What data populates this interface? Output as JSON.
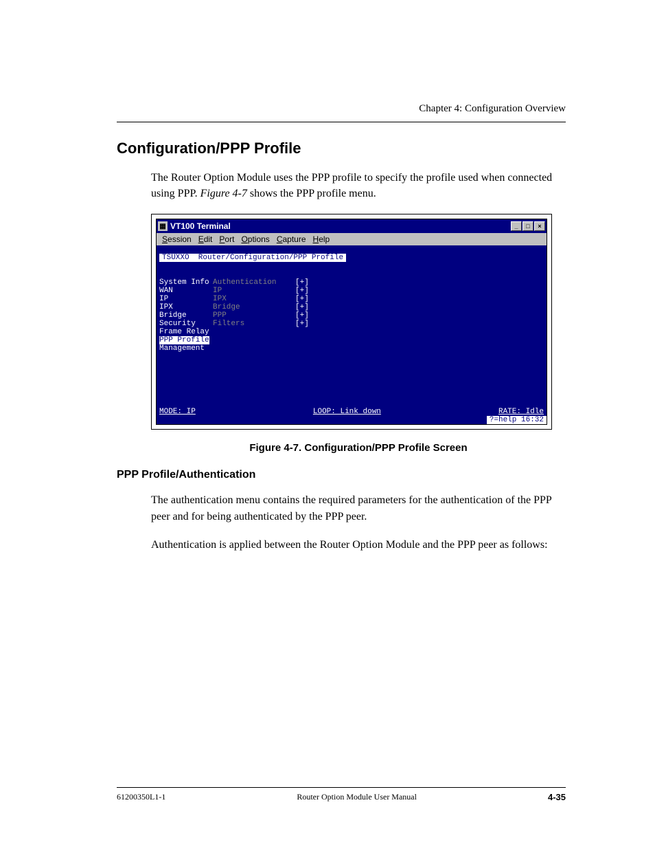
{
  "page": {
    "chapter_header": "Chapter 4:  Configuration Overview",
    "section_title": "Configuration/PPP Profile",
    "intro_1a": "The Router Option Module uses the PPP profile to specify the pro­file used when connected using PPP. ",
    "intro_1b": "Figure 4-7",
    "intro_1c": " shows the PPP pro­file menu.",
    "figure_caption": "Figure 4-7.  Configuration/PPP Profile Screen",
    "subsection_title": "PPP Profile/Authentication",
    "auth_p1": "The authentication menu contains the required parameters for the authentication of the PPP peer and for being authenticated by the PPP peer.",
    "auth_p2": "Authentication is applied between the Router Option Module and the PPP peer as follows:"
  },
  "terminal": {
    "titlebar_text": "VT100 Terminal",
    "menubar": [
      "Session",
      "Edit",
      "Port",
      "Options",
      "Capture",
      "Help"
    ],
    "header": "TSUXXO  Router/Configuration/PPP Profile",
    "left_panel": [
      "System Info",
      "WAN",
      "IP",
      "IPX",
      "Bridge",
      "Security",
      "Frame Relay",
      "PPP Profile",
      "Management"
    ],
    "left_selected_index": 7,
    "mid_panel": [
      "Authentication",
      "IP",
      "IPX",
      "Bridge",
      "PPP",
      "Filters"
    ],
    "right_marks": [
      "[+]",
      "[+]",
      "[+]",
      "[+]",
      "[+]",
      "[+]"
    ],
    "status_mode": "MODE: IP",
    "status_loop": "LOOP: Link down",
    "status_rate": "RATE: Idle",
    "help": "?=help 16:32",
    "colors": {
      "titlebar_bg": "#000080",
      "titlebar_fg": "#ffffff",
      "menubar_bg": "#c0c0c0",
      "screen_bg": "#000080",
      "screen_fg": "#ffffff",
      "dim_fg": "#808080",
      "inverse_bg": "#ffffff",
      "inverse_fg": "#000080"
    }
  },
  "footer": {
    "left": "61200350L1-1",
    "center": "Router Option Module User Manual",
    "right": "4-35"
  }
}
